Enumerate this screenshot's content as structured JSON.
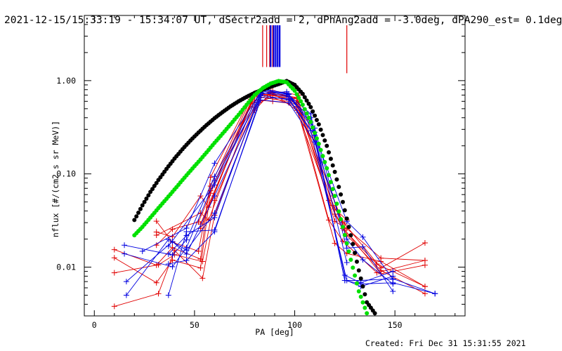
{
  "colors": {
    "background": "#ffffff",
    "axis": "#000000",
    "red_series": "#e00000",
    "blue_series": "#0000e0",
    "black_fit": "#000000",
    "green_fit": "#00e000"
  },
  "chart_data": {
    "type": "scatter",
    "title": "2021-12-15/15:33:19 - 15:34:07 UT, dSectr2add = 2, dPhAng2add = -3.0deg, dPA290_est=  0.1deg",
    "xlabel": "PA [deg]",
    "ylabel": "nflux [#/(cm2 s sr MeV)]",
    "xlim": [
      -5,
      185
    ],
    "ylim": [
      0.003,
      5.0
    ],
    "yscale": "log",
    "x_ticks": [
      0,
      50,
      100,
      150
    ],
    "x_tick_labels": [
      "0",
      "50",
      "100",
      "150"
    ],
    "y_ticks": [
      0.01,
      0.1,
      1.0
    ],
    "y_tick_labels": [
      "0.01",
      "0.10",
      "1.00"
    ],
    "footer": "Created: Fri Dec 31 15:31:55 2021",
    "vertical_markers": {
      "red": [
        84.0,
        86.0,
        87.5,
        89.0,
        126.0
      ],
      "blue": [
        88.0,
        89.5,
        90.5,
        91.5,
        92.5
      ]
    },
    "series": [
      {
        "name": "black-fit",
        "style": "dots",
        "x": [
          20,
          24,
          28,
          32,
          36,
          40,
          44,
          48,
          52,
          56,
          60,
          64,
          68,
          72,
          76,
          80,
          84,
          88,
          92,
          96,
          100,
          104,
          108,
          112,
          116,
          120,
          124,
          128,
          132,
          136,
          140
        ],
        "y": [
          0.032,
          0.046,
          0.064,
          0.086,
          0.113,
          0.146,
          0.184,
          0.228,
          0.278,
          0.334,
          0.395,
          0.46,
          0.53,
          0.6,
          0.67,
          0.74,
          0.8,
          0.86,
          0.92,
          0.99,
          0.9,
          0.72,
          0.52,
          0.34,
          0.2,
          0.105,
          0.05,
          0.022,
          0.0092,
          0.0042,
          0.0032
        ]
      },
      {
        "name": "green-fit",
        "style": "dots",
        "x": [
          20,
          24,
          28,
          32,
          36,
          40,
          44,
          48,
          52,
          56,
          60,
          64,
          68,
          72,
          76,
          80,
          84,
          88,
          92,
          96,
          100,
          104,
          108,
          112,
          116,
          120,
          124,
          128,
          132,
          136
        ],
        "y": [
          0.022,
          0.027,
          0.034,
          0.043,
          0.054,
          0.068,
          0.086,
          0.108,
          0.135,
          0.17,
          0.215,
          0.27,
          0.34,
          0.43,
          0.55,
          0.7,
          0.83,
          0.93,
          0.99,
          0.96,
          0.78,
          0.55,
          0.36,
          0.21,
          0.115,
          0.058,
          0.027,
          0.012,
          0.0055,
          0.0032
        ]
      },
      {
        "name": "red-sweeps",
        "style": "lines",
        "lines": [
          {
            "x": [
              10,
              31,
              39,
              53,
              58,
              78,
              88,
              101,
              117,
              124,
              141,
              165
            ],
            "y": [
              0.0154,
              0.0105,
              0.0162,
              0.0122,
              0.092,
              0.66,
              0.76,
              0.64,
              0.052,
              0.026,
              0.0108,
              0.0062
            ]
          },
          {
            "x": [
              10,
              31,
              39,
              53,
              58,
              78,
              88,
              101,
              117,
              124,
              141,
              165
            ],
            "y": [
              0.0126,
              0.0068,
              0.0119,
              0.0098,
              0.066,
              0.58,
              0.72,
              0.58,
              0.032,
              0.019,
              0.0087,
              0.0118
            ]
          },
          {
            "x": [
              10,
              32,
              40,
              54,
              60,
              80,
              88,
              102,
              119,
              125,
              143,
              165
            ],
            "y": [
              0.0087,
              0.0106,
              0.0136,
              0.0115,
              0.052,
              0.52,
              0.7,
              0.6,
              0.046,
              0.029,
              0.0098,
              0.0182
            ]
          },
          {
            "x": [
              10,
              32,
              40,
              54,
              60,
              80,
              89,
              102,
              119,
              125,
              143,
              165
            ],
            "y": [
              0.0038,
              0.0052,
              0.0151,
              0.0076,
              0.036,
              0.48,
              0.78,
              0.7,
              0.058,
              0.025,
              0.0085,
              0.0105
            ]
          },
          {
            "x": [
              31,
              39,
              52,
              58,
              78,
              89,
              101,
              120,
              126,
              143,
              165
            ],
            "y": [
              0.0311,
              0.0185,
              0.0148,
              0.074,
              0.63,
              0.74,
              0.48,
              0.037,
              0.022,
              0.0092,
              0.0052
            ]
          },
          {
            "x": [
              31,
              39,
              52,
              58,
              78,
              89,
              101,
              120,
              126,
              143,
              165
            ],
            "y": [
              0.0172,
              0.0255,
              0.0305,
              0.062,
              0.56,
              0.66,
              0.52,
              0.018,
              0.014,
              0.0115,
              0.0062
            ]
          },
          {
            "x": [
              31,
              39,
              53,
              57,
              80,
              89,
              101,
              120,
              126,
              143,
              165
            ],
            "y": [
              0.0238,
              0.0212,
              0.058,
              0.044,
              0.7,
              0.72,
              0.66,
              0.031,
              0.026,
              0.0125,
              0.0118
            ]
          },
          {
            "x": [
              31,
              53,
              57,
              80,
              89,
              101,
              120,
              126
            ],
            "y": [
              0.022,
              0.038,
              0.032,
              0.62,
              0.6,
              0.56,
              0.042,
              0.032
            ]
          },
          {
            "x": [
              53,
              80,
              101,
              124
            ],
            "y": [
              0.029,
              0.68,
              0.58,
              0.03
            ]
          },
          {
            "x": [
              53,
              80,
              101
            ],
            "y": [
              0.026,
              0.73,
              0.64
            ]
          }
        ]
      },
      {
        "name": "blue-sweeps",
        "style": "lines",
        "lines": [
          {
            "x": [
              15,
              39,
              46,
              60,
              84,
              96,
              108,
              125,
              133,
              149,
              170
            ],
            "y": [
              0.0172,
              0.0135,
              0.0196,
              0.094,
              0.82,
              0.73,
              0.44,
              0.0072,
              0.0072,
              0.0075,
              0.0052
            ]
          },
          {
            "x": [
              15,
              39,
              46,
              60,
              84,
              96,
              108,
              125,
              133,
              149,
              170
            ],
            "y": [
              0.0139,
              0.0101,
              0.0162,
              0.084,
              0.77,
              0.7,
              0.4,
              0.0072,
              0.0066,
              0.0068,
              0.0052
            ]
          },
          {
            "x": [
              16,
              39,
              46,
              60,
              84,
              96,
              108,
              125,
              133,
              149
            ],
            "y": [
              0.007,
              0.0188,
              0.0138,
              0.058,
              0.73,
              0.76,
              0.36,
              0.0082,
              0.0068,
              0.009
            ]
          },
          {
            "x": [
              16,
              37,
              46,
              60,
              83,
              97,
              108,
              126,
              133,
              149
            ],
            "y": [
              0.005,
              0.0198,
              0.0152,
              0.038,
              0.7,
              0.62,
              0.29,
              0.0072,
              0.0062,
              0.008
            ]
          },
          {
            "x": [
              37,
              46,
              60,
              83,
              97,
              110,
              126,
              134,
              149
            ],
            "y": [
              0.0138,
              0.0218,
              0.034,
              0.75,
              0.67,
              0.31,
              0.016,
              0.0165,
              0.0055
            ]
          },
          {
            "x": [
              37,
              46,
              60,
              83,
              97,
              110,
              126,
              134,
              149
            ],
            "y": [
              0.0108,
              0.0118,
              0.024,
              0.66,
              0.64,
              0.26,
              0.031,
              0.021,
              0.0074
            ]
          },
          {
            "x": [
              37,
              46,
              60,
              83,
              97,
              110,
              126,
              134,
              149
            ],
            "y": [
              0.005,
              0.024,
              0.025,
              0.62,
              0.58,
              0.22,
              0.02,
              0.012,
              0.0066
            ]
          },
          {
            "x": [
              37,
              60,
              84,
              97,
              110,
              126
            ],
            "y": [
              0.0168,
              0.076,
              0.79,
              0.71,
              0.28,
              0.0112
            ]
          },
          {
            "x": [
              24,
              46,
              60,
              84,
              97
            ],
            "y": [
              0.0148,
              0.0262,
              0.13,
              0.81,
              0.72
            ]
          }
        ]
      }
    ]
  }
}
